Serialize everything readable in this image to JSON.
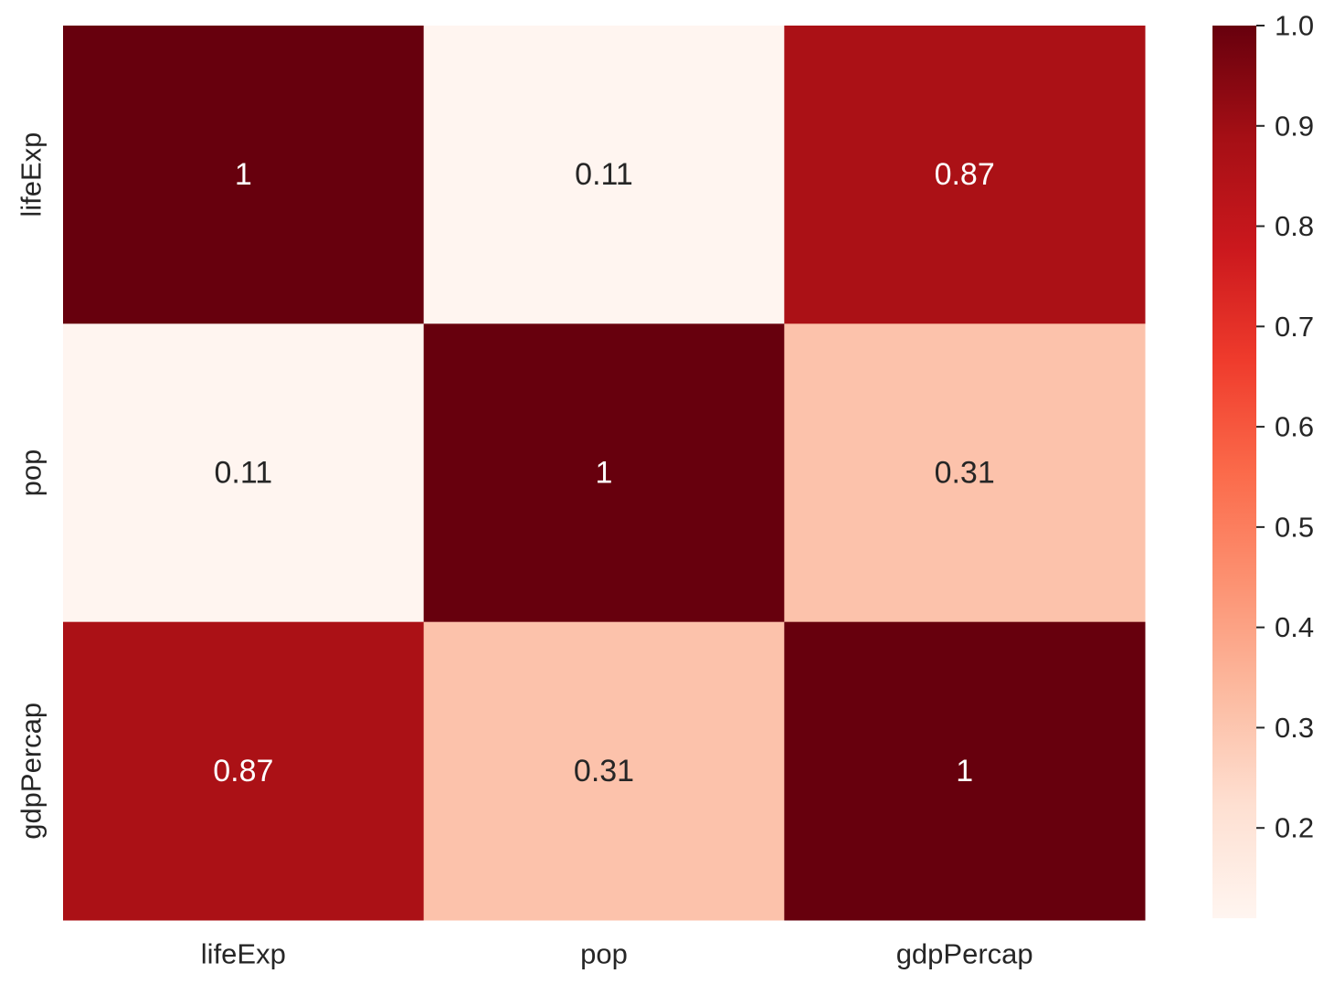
{
  "chart_data": {
    "type": "heatmap",
    "title": "",
    "xlabel": "",
    "ylabel": "",
    "x_categories": [
      "lifeExp",
      "pop",
      "gdpPercap"
    ],
    "y_categories": [
      "lifeExp",
      "pop",
      "gdpPercap"
    ],
    "values": [
      [
        1,
        0.11,
        0.87
      ],
      [
        0.11,
        1,
        0.31
      ],
      [
        0.87,
        0.31,
        1
      ]
    ],
    "annotations": [
      [
        "1",
        "0.11",
        "0.87"
      ],
      [
        "0.11",
        "1",
        "0.31"
      ],
      [
        "0.87",
        "0.31",
        "1"
      ]
    ],
    "colormap": "Reds",
    "colorbar": {
      "range": [
        0.11,
        1.0
      ],
      "ticks": [
        0.2,
        0.3,
        0.4,
        0.5,
        0.6,
        0.7,
        0.8,
        0.9,
        1.0
      ],
      "tick_labels": [
        "0.2",
        "0.3",
        "0.4",
        "0.5",
        "0.6",
        "0.7",
        "0.8",
        "0.9",
        "1.0"
      ],
      "placement": "right"
    },
    "grid": false
  }
}
